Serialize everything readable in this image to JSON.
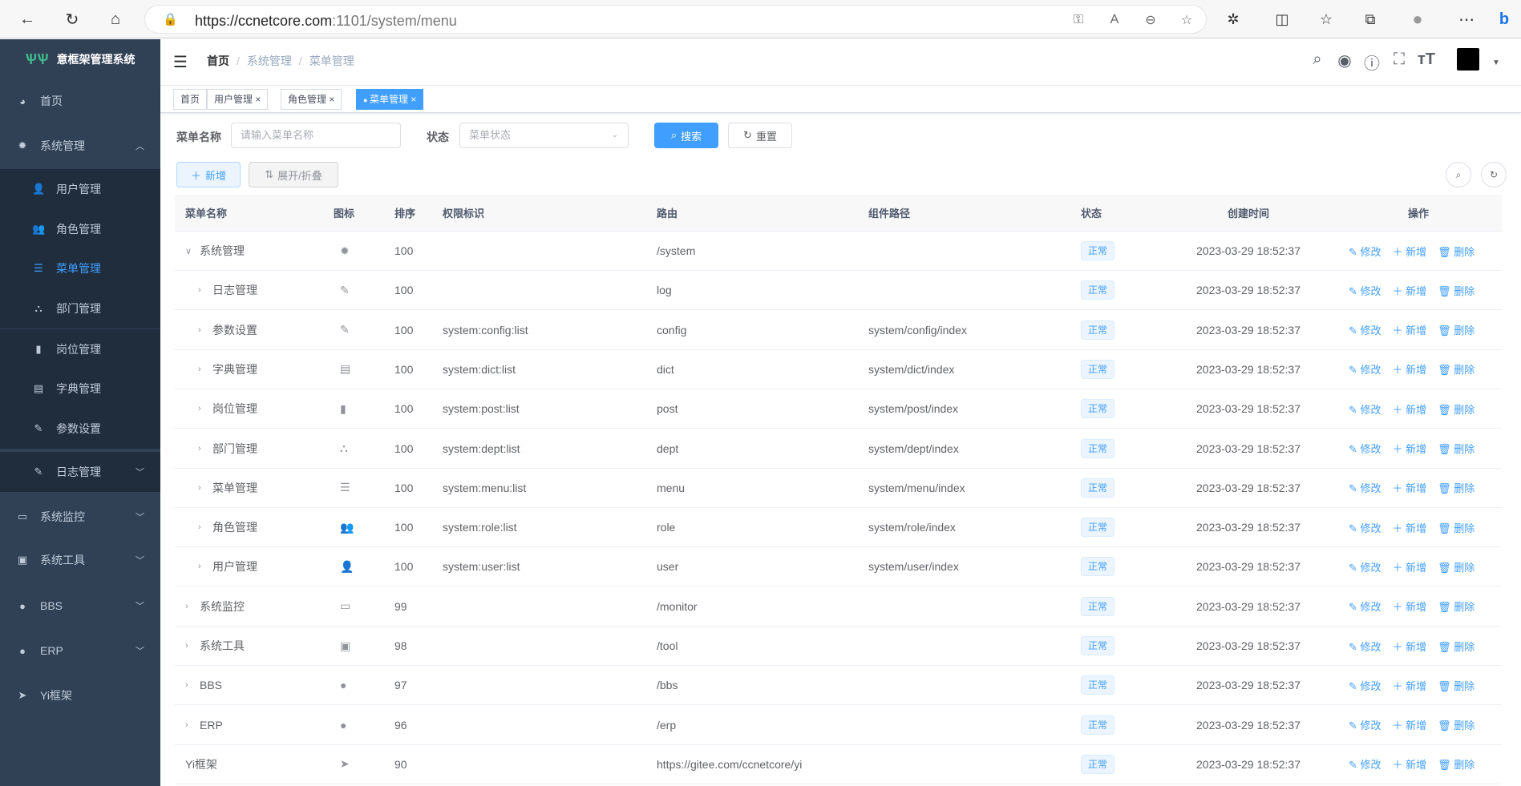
{
  "browser": {
    "url_host": "https://ccnetcore.com",
    "url_path": ":1101/system/menu",
    "icons": [
      "back-icon",
      "refresh-icon",
      "home-icon",
      "key-icon",
      "read-aloud-icon",
      "zoom-out-icon",
      "favorite-add-icon",
      "extensions-icon",
      "split-screen-icon",
      "favorites-icon",
      "collections-icon",
      "profile-icon",
      "more-icon",
      "bing-icon"
    ]
  },
  "sidebar": {
    "title": "意框架管理系统",
    "items": [
      {
        "label": "首页",
        "icon": "dashboard-icon",
        "glyph": "◕"
      },
      {
        "label": "系统管理",
        "icon": "gear-icon",
        "glyph": "✹",
        "expanded": true
      },
      {
        "label": "用户管理",
        "icon": "user-icon",
        "glyph": "👤",
        "sub": true
      },
      {
        "label": "角色管理",
        "icon": "peoples-icon",
        "glyph": "👥",
        "sub": true
      },
      {
        "label": "菜单管理",
        "icon": "tree-table-icon",
        "glyph": "☰",
        "sub": true,
        "active": true
      },
      {
        "label": "部门管理",
        "icon": "tree-icon",
        "glyph": "⛬",
        "sub": true
      },
      {
        "label": "岗位管理",
        "icon": "post-icon",
        "glyph": "▮",
        "sub": true
      },
      {
        "label": "字典管理",
        "icon": "dict-icon",
        "glyph": "▤",
        "sub": true
      },
      {
        "label": "参数设置",
        "icon": "edit-icon",
        "glyph": "✎",
        "sub": true
      },
      {
        "label": "日志管理",
        "icon": "log-icon",
        "glyph": "✎",
        "sub": true,
        "collapsible": true
      },
      {
        "label": "系统监控",
        "icon": "monitor-icon",
        "glyph": "▭",
        "collapsible": true
      },
      {
        "label": "系统工具",
        "icon": "tool-icon",
        "glyph": "▣",
        "collapsible": true
      },
      {
        "label": "BBS",
        "icon": "globe-icon",
        "glyph": "●",
        "collapsible": true
      },
      {
        "label": "ERP",
        "icon": "globe-icon",
        "glyph": "●",
        "collapsible": true
      },
      {
        "label": "Yi框架",
        "icon": "send-icon",
        "glyph": "➤"
      }
    ]
  },
  "navbar": {
    "breadcrumb": [
      "首页",
      "系统管理",
      "菜单管理"
    ],
    "icons": [
      "search-icon",
      "github-icon",
      "question-icon",
      "fullscreen-icon",
      "font-size-icon"
    ]
  },
  "tags": [
    {
      "label": "首页",
      "closable": false
    },
    {
      "label": "用户管理",
      "closable": true
    },
    {
      "label": "角色管理",
      "closable": true
    },
    {
      "label": "菜单管理",
      "closable": true,
      "active": true
    }
  ],
  "search": {
    "name_label": "菜单名称",
    "name_placeholder": "请输入菜单名称",
    "status_label": "状态",
    "status_placeholder": "菜单状态",
    "search_btn": "搜索",
    "reset_btn": "重置"
  },
  "toolbar": {
    "add_btn": "新增",
    "expand_btn": "展开/折叠"
  },
  "table": {
    "headers": [
      "菜单名称",
      "图标",
      "排序",
      "权限标识",
      "路由",
      "组件路径",
      "状态",
      "创建时间",
      "操作"
    ],
    "actions": [
      "修改",
      "新增",
      "删除"
    ],
    "rows": [
      {
        "name": "系统管理",
        "level": 0,
        "tree": "open",
        "icon": "gear-icon",
        "glyph": "✹",
        "sort": "100",
        "perms": "",
        "route": "/system",
        "component": "",
        "status": "正常",
        "time": "2023-03-29 18:52:37"
      },
      {
        "name": "日志管理",
        "level": 1,
        "tree": "closed",
        "icon": "log-icon",
        "glyph": "✎",
        "sort": "100",
        "perms": "",
        "route": "log",
        "component": "",
        "status": "正常",
        "time": "2023-03-29 18:52:37"
      },
      {
        "name": "参数设置",
        "level": 1,
        "tree": "closed",
        "icon": "edit-icon",
        "glyph": "✎",
        "sort": "100",
        "perms": "system:config:list",
        "route": "config",
        "component": "system/config/index",
        "status": "正常",
        "time": "2023-03-29 18:52:37"
      },
      {
        "name": "字典管理",
        "level": 1,
        "tree": "closed",
        "icon": "dict-icon",
        "glyph": "▤",
        "sort": "100",
        "perms": "system:dict:list",
        "route": "dict",
        "component": "system/dict/index",
        "status": "正常",
        "time": "2023-03-29 18:52:37"
      },
      {
        "name": "岗位管理",
        "level": 1,
        "tree": "closed",
        "icon": "post-icon",
        "glyph": "▮",
        "sort": "100",
        "perms": "system:post:list",
        "route": "post",
        "component": "system/post/index",
        "status": "正常",
        "time": "2023-03-29 18:52:37"
      },
      {
        "name": "部门管理",
        "level": 1,
        "tree": "closed",
        "icon": "tree-icon",
        "glyph": "⛬",
        "sort": "100",
        "perms": "system:dept:list",
        "route": "dept",
        "component": "system/dept/index",
        "status": "正常",
        "time": "2023-03-29 18:52:37"
      },
      {
        "name": "菜单管理",
        "level": 1,
        "tree": "closed",
        "icon": "tree-table-icon",
        "glyph": "☰",
        "sort": "100",
        "perms": "system:menu:list",
        "route": "menu",
        "component": "system/menu/index",
        "status": "正常",
        "time": "2023-03-29 18:52:37"
      },
      {
        "name": "角色管理",
        "level": 1,
        "tree": "closed",
        "icon": "peoples-icon",
        "glyph": "👥",
        "sort": "100",
        "perms": "system:role:list",
        "route": "role",
        "component": "system/role/index",
        "status": "正常",
        "time": "2023-03-29 18:52:37"
      },
      {
        "name": "用户管理",
        "level": 1,
        "tree": "closed",
        "icon": "user-icon",
        "glyph": "👤",
        "sort": "100",
        "perms": "system:user:list",
        "route": "user",
        "component": "system/user/index",
        "status": "正常",
        "time": "2023-03-29 18:52:37"
      },
      {
        "name": "系统监控",
        "level": 0,
        "tree": "closed",
        "icon": "monitor-icon",
        "glyph": "▭",
        "sort": "99",
        "perms": "",
        "route": "/monitor",
        "component": "",
        "status": "正常",
        "time": "2023-03-29 18:52:37"
      },
      {
        "name": "系统工具",
        "level": 0,
        "tree": "closed",
        "icon": "tool-icon",
        "glyph": "▣",
        "sort": "98",
        "perms": "",
        "route": "/tool",
        "component": "",
        "status": "正常",
        "time": "2023-03-29 18:52:37"
      },
      {
        "name": "BBS",
        "level": 0,
        "tree": "closed",
        "icon": "globe-icon",
        "glyph": "●",
        "sort": "97",
        "perms": "",
        "route": "/bbs",
        "component": "",
        "status": "正常",
        "time": "2023-03-29 18:52:37"
      },
      {
        "name": "ERP",
        "level": 0,
        "tree": "closed",
        "icon": "globe-icon",
        "glyph": "●",
        "sort": "96",
        "perms": "",
        "route": "/erp",
        "component": "",
        "status": "正常",
        "time": "2023-03-29 18:52:37"
      },
      {
        "name": "Yi框架",
        "level": 0,
        "tree": "none",
        "icon": "send-icon",
        "glyph": "➤",
        "sort": "90",
        "perms": "",
        "route": "https://gitee.com/ccnetcore/yi",
        "component": "",
        "status": "正常",
        "time": "2023-03-29 18:52:37"
      }
    ]
  },
  "colors": {
    "sidebar": "#304156",
    "submenu": "#1f2d3d",
    "primary": "#409eff"
  }
}
